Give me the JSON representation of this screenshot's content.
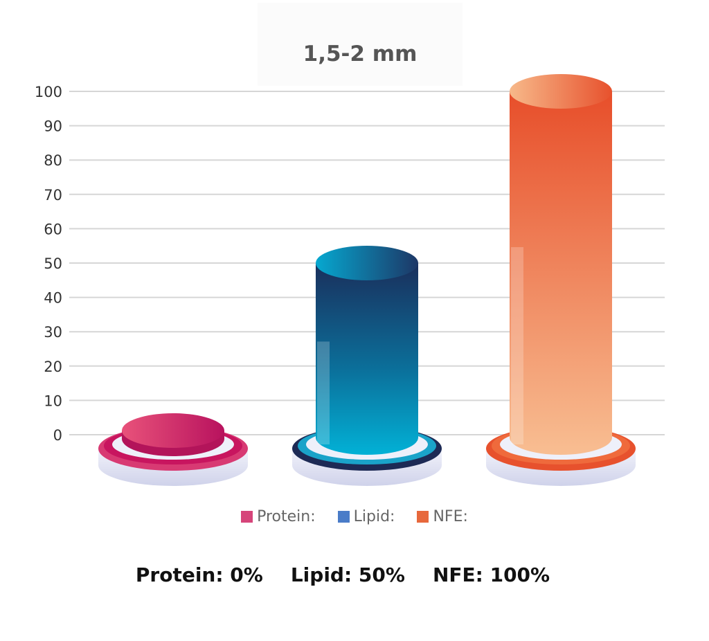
{
  "chart_data": {
    "type": "bar",
    "title": "1,5-2 mm",
    "categories": [
      "Protein:",
      "Lipid:",
      "NFE:"
    ],
    "values": [
      0,
      50,
      100
    ],
    "ylim": [
      0,
      100
    ],
    "yticks": [
      0,
      10,
      20,
      30,
      40,
      50,
      60,
      70,
      80,
      90,
      100
    ],
    "grid": true,
    "legend_position": "bottom-center",
    "colors": {
      "Protein:": [
        "#e04870",
        "#b8125e"
      ],
      "Lipid:": [
        "#1a2f5c",
        "#04a8d0"
      ],
      "NFE:": [
        "#e74e2a",
        "#f7b98a"
      ]
    },
    "legend": [
      {
        "label": "Protein:",
        "color": "#d6457a"
      },
      {
        "label": "Lipid:",
        "color": "#4a7cc8"
      },
      {
        "label": "NFE:",
        "color": "#e7683c"
      }
    ]
  },
  "summary": [
    {
      "name": "Protein:",
      "value": "0%"
    },
    {
      "name": "Lipid:",
      "value": "50%"
    },
    {
      "name": "NFE:",
      "value": "100%"
    }
  ]
}
